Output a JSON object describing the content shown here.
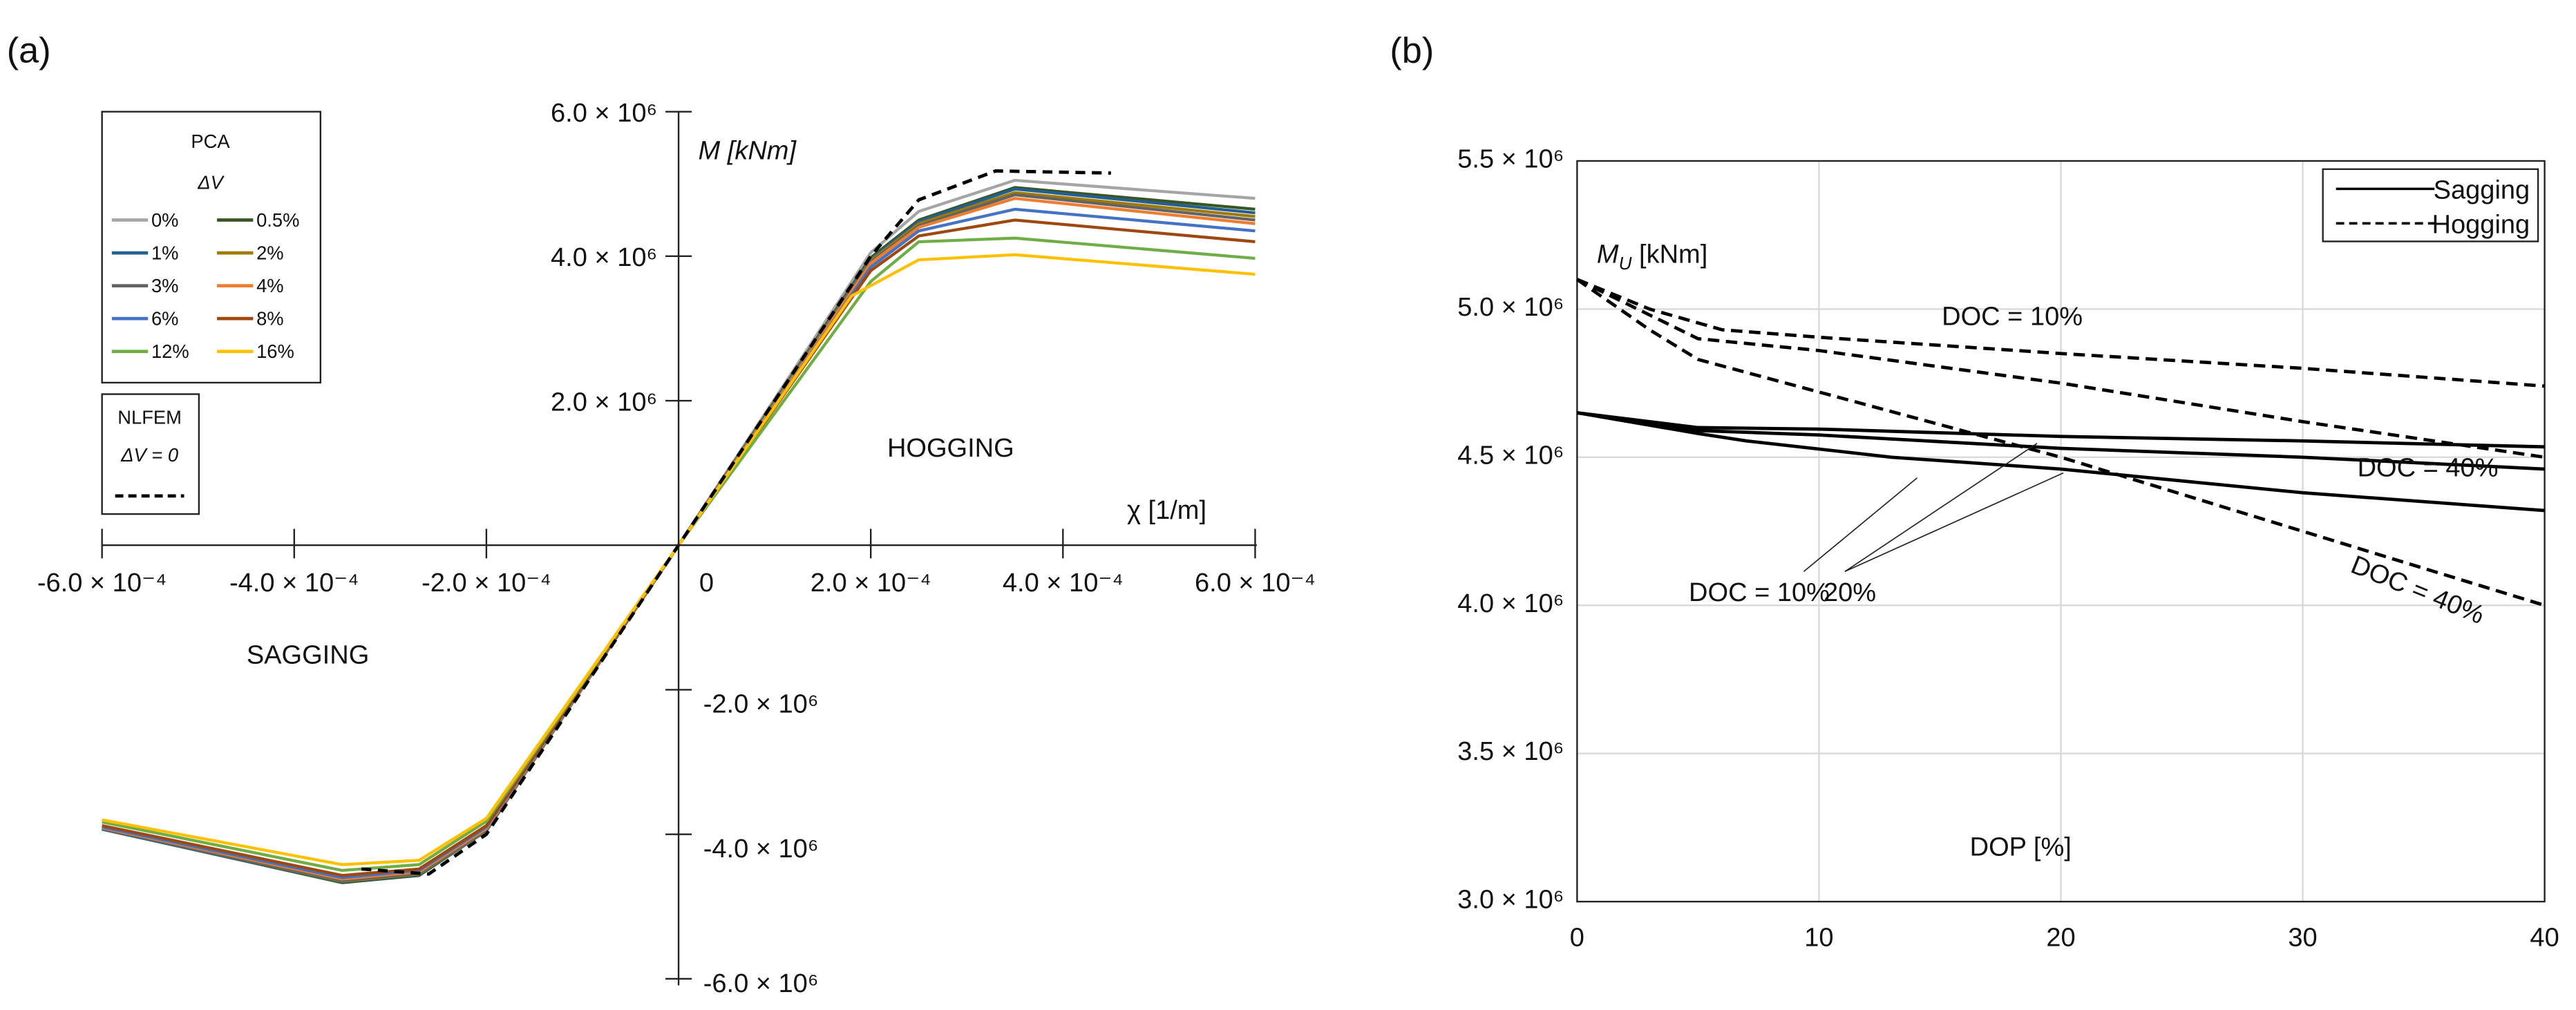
{
  "chart_data": [
    {
      "panel_label": "(a)",
      "type": "line",
      "xlabel": "χ [1/m]",
      "ylabel": "M [kNm]",
      "x_unit_scale": "1e-4",
      "y_unit_scale": "1e6",
      "xlim": [
        -6,
        6
      ],
      "ylim": [
        -6,
        6
      ],
      "x_ticks": [
        {
          "v": -6,
          "label": "-6.0 × 10⁻⁴"
        },
        {
          "v": -4,
          "label": "-4.0 × 10⁻⁴"
        },
        {
          "v": -2,
          "label": "-2.0 × 10⁻⁴"
        },
        {
          "v": 0,
          "label": "0"
        },
        {
          "v": 2,
          "label": "2.0 × 10⁻⁴"
        },
        {
          "v": 4,
          "label": "4.0 × 10⁻⁴"
        },
        {
          "v": 6,
          "label": "6.0 × 10⁻⁴"
        }
      ],
      "y_ticks": [
        {
          "v": 6,
          "label": "6.0 × 10⁶"
        },
        {
          "v": 4,
          "label": "4.0 × 10⁶"
        },
        {
          "v": 2,
          "label": "2.0 × 10⁶"
        },
        {
          "v": -2,
          "label": "-2.0 × 10⁶"
        },
        {
          "v": -4,
          "label": "-4.0 × 10⁶"
        },
        {
          "v": -6,
          "label": "-6.0 × 10⁶"
        }
      ],
      "annotations": {
        "hogging": "HOGGING",
        "sagging": "SAGGING"
      },
      "legend": {
        "pca_title": "PCA",
        "pca_subtitle": "ΔV",
        "nlfem_title": "NLFEM",
        "nlfem_subtitle": "ΔV = 0",
        "placement": "top-left"
      },
      "series": [
        {
          "name": "0%",
          "color": "#a5a5a5",
          "points": [
            [
              -6,
              -3.92
            ],
            [
              -3.5,
              -4.66
            ],
            [
              -2.7,
              -4.56
            ],
            [
              -2,
              -3.95
            ],
            [
              0,
              0
            ],
            [
              2,
              4.05
            ],
            [
              2.5,
              4.62
            ],
            [
              3.5,
              5.05
            ],
            [
              6,
              4.8
            ]
          ]
        },
        {
          "name": "0.5%",
          "color": "#375623",
          "points": [
            [
              -6,
              -3.93
            ],
            [
              -3.5,
              -4.67
            ],
            [
              -2.7,
              -4.57
            ],
            [
              -2,
              -3.95
            ],
            [
              0,
              0
            ],
            [
              2,
              3.98
            ],
            [
              2.5,
              4.5
            ],
            [
              3.5,
              4.95
            ],
            [
              6,
              4.65
            ]
          ]
        },
        {
          "name": "1%",
          "color": "#255e91",
          "points": [
            [
              -6,
              -3.93
            ],
            [
              -3.5,
              -4.66
            ],
            [
              -2.7,
              -4.56
            ],
            [
              -2,
              -3.95
            ],
            [
              0,
              0
            ],
            [
              2,
              3.96
            ],
            [
              2.5,
              4.48
            ],
            [
              3.5,
              4.93
            ],
            [
              6,
              4.6
            ]
          ]
        },
        {
          "name": "2%",
          "color": "#9e7b00",
          "points": [
            [
              -6,
              -3.92
            ],
            [
              -3.5,
              -4.65
            ],
            [
              -2.7,
              -4.55
            ],
            [
              -2,
              -3.94
            ],
            [
              0,
              0
            ],
            [
              2,
              3.94
            ],
            [
              2.5,
              4.45
            ],
            [
              3.5,
              4.88
            ],
            [
              6,
              4.55
            ]
          ]
        },
        {
          "name": "3%",
          "color": "#636363",
          "points": [
            [
              -6,
              -3.92
            ],
            [
              -3.5,
              -4.64
            ],
            [
              -2.7,
              -4.54
            ],
            [
              -2,
              -3.93
            ],
            [
              0,
              0
            ],
            [
              2,
              3.92
            ],
            [
              2.5,
              4.42
            ],
            [
              3.5,
              4.85
            ],
            [
              6,
              4.5
            ]
          ]
        },
        {
          "name": "4%",
          "color": "#ed7d31",
          "points": [
            [
              -6,
              -3.91
            ],
            [
              -3.5,
              -4.62
            ],
            [
              -2.7,
              -4.52
            ],
            [
              -2,
              -3.92
            ],
            [
              0,
              0
            ],
            [
              2,
              3.9
            ],
            [
              2.5,
              4.4
            ],
            [
              3.5,
              4.8
            ],
            [
              6,
              4.45
            ]
          ]
        },
        {
          "name": "6%",
          "color": "#4472c4",
          "points": [
            [
              -6,
              -3.9
            ],
            [
              -3.5,
              -4.6
            ],
            [
              -2.7,
              -4.5
            ],
            [
              -2,
              -3.9
            ],
            [
              0,
              0
            ],
            [
              2,
              3.85
            ],
            [
              2.5,
              4.35
            ],
            [
              3.5,
              4.65
            ],
            [
              6,
              4.35
            ]
          ]
        },
        {
          "name": "8%",
          "color": "#9e480e",
          "points": [
            [
              -6,
              -3.88
            ],
            [
              -3.5,
              -4.57
            ],
            [
              -2.7,
              -4.48
            ],
            [
              -2,
              -3.88
            ],
            [
              0,
              0
            ],
            [
              2,
              3.8
            ],
            [
              2.5,
              4.28
            ],
            [
              3.5,
              4.5
            ],
            [
              6,
              4.2
            ]
          ]
        },
        {
          "name": "12%",
          "color": "#70ad47",
          "points": [
            [
              -6,
              -3.83
            ],
            [
              -3.5,
              -4.5
            ],
            [
              -2.7,
              -4.42
            ],
            [
              -2,
              -3.82
            ],
            [
              0,
              0
            ],
            [
              2,
              3.65
            ],
            [
              2.5,
              4.2
            ],
            [
              3.5,
              4.25
            ],
            [
              6,
              3.97
            ]
          ]
        },
        {
          "name": "16%",
          "color": "#ffc000",
          "points": [
            [
              -6,
              -3.8
            ],
            [
              -3.5,
              -4.42
            ],
            [
              -2.7,
              -4.36
            ],
            [
              -2,
              -3.78
            ],
            [
              0,
              0
            ],
            [
              1.8,
              3.45
            ],
            [
              2.5,
              3.95
            ],
            [
              3.5,
              4.02
            ],
            [
              6,
              3.75
            ]
          ]
        }
      ],
      "nlfem": {
        "name": "NLFEM ΔV = 0",
        "color": "#000000",
        "points": [
          [
            -3.3,
            -4.48
          ],
          [
            -2.6,
            -4.55
          ],
          [
            -2,
            -4.0
          ],
          [
            0,
            0
          ],
          [
            2,
            4.0
          ],
          [
            2.5,
            4.78
          ],
          [
            3.3,
            5.18
          ],
          [
            4.5,
            5.15
          ]
        ]
      }
    },
    {
      "panel_label": "(b)",
      "type": "line",
      "xlabel": "DOP [%]",
      "ylabel": "M_U [kNm]",
      "ylabel_main": "M",
      "ylabel_sub": "U",
      "ylabel_unit": " [kNm]",
      "xlim": [
        0,
        40
      ],
      "ylim": [
        3.0,
        5.5
      ],
      "y_unit_scale": "1e6",
      "grid": true,
      "x_ticks": [
        {
          "v": 0,
          "label": "0"
        },
        {
          "v": 10,
          "label": "10"
        },
        {
          "v": 20,
          "label": "20"
        },
        {
          "v": 30,
          "label": "30"
        },
        {
          "v": 40,
          "label": "40"
        }
      ],
      "y_ticks": [
        {
          "v": 5.5,
          "label": "5.5 × 10⁶"
        },
        {
          "v": 5.0,
          "label": "5.0 × 10⁶"
        },
        {
          "v": 4.5,
          "label": "4.5 × 10⁶"
        },
        {
          "v": 4.0,
          "label": "4.0 × 10⁶"
        },
        {
          "v": 3.5,
          "label": "3.5 × 10⁶"
        },
        {
          "v": 3.0,
          "label": "3.0 × 10⁶"
        }
      ],
      "legend": {
        "sagging": "Sagging",
        "hogging": "Hogging",
        "placement": "top-right"
      },
      "series": [
        {
          "name": "Sagging DOC = 10%",
          "style": "solid",
          "points": [
            [
              0,
              4.65
            ],
            [
              5,
              4.6
            ],
            [
              10,
              4.595
            ],
            [
              20,
              4.57
            ],
            [
              30,
              4.555
            ],
            [
              40,
              4.535
            ]
          ]
        },
        {
          "name": "Sagging DOC = 20%",
          "style": "solid",
          "points": [
            [
              0,
              4.65
            ],
            [
              5,
              4.59
            ],
            [
              10,
              4.575
            ],
            [
              20,
              4.53
            ],
            [
              30,
              4.5
            ],
            [
              40,
              4.46
            ]
          ]
        },
        {
          "name": "Sagging DOC = 40%",
          "style": "solid",
          "points": [
            [
              0,
              4.65
            ],
            [
              5,
              4.58
            ],
            [
              7,
              4.555
            ],
            [
              13,
              4.5
            ],
            [
              20,
              4.46
            ],
            [
              30,
              4.38
            ],
            [
              40,
              4.32
            ]
          ]
        },
        {
          "name": "Hogging DOC = 10%",
          "style": "dashed",
          "points": [
            [
              0,
              5.1
            ],
            [
              3,
              5.0
            ],
            [
              6,
              4.93
            ],
            [
              10,
              4.905
            ],
            [
              20,
              4.85
            ],
            [
              30,
              4.8
            ],
            [
              40,
              4.74
            ]
          ]
        },
        {
          "name": "Hogging DOC = 20%",
          "style": "dashed",
          "points": [
            [
              0,
              5.1
            ],
            [
              3,
              4.98
            ],
            [
              5,
              4.9
            ],
            [
              10,
              4.86
            ],
            [
              20,
              4.75
            ],
            [
              30,
              4.62
            ],
            [
              40,
              4.5
            ]
          ]
        },
        {
          "name": "Hogging DOC = 40%",
          "style": "dashed",
          "points": [
            [
              0,
              5.1
            ],
            [
              3,
              4.93
            ],
            [
              5,
              4.83
            ],
            [
              10,
              4.72
            ],
            [
              20,
              4.5
            ],
            [
              30,
              4.25
            ],
            [
              40,
              4.0
            ]
          ]
        }
      ],
      "annotations": {
        "hog_doc10": "DOC = 10%",
        "sag_doc40": "DOC = 40%",
        "hog_doc40": "DOC = 40%",
        "sag_doc10": "DOC = 10%",
        "doc20": "20%"
      }
    }
  ]
}
